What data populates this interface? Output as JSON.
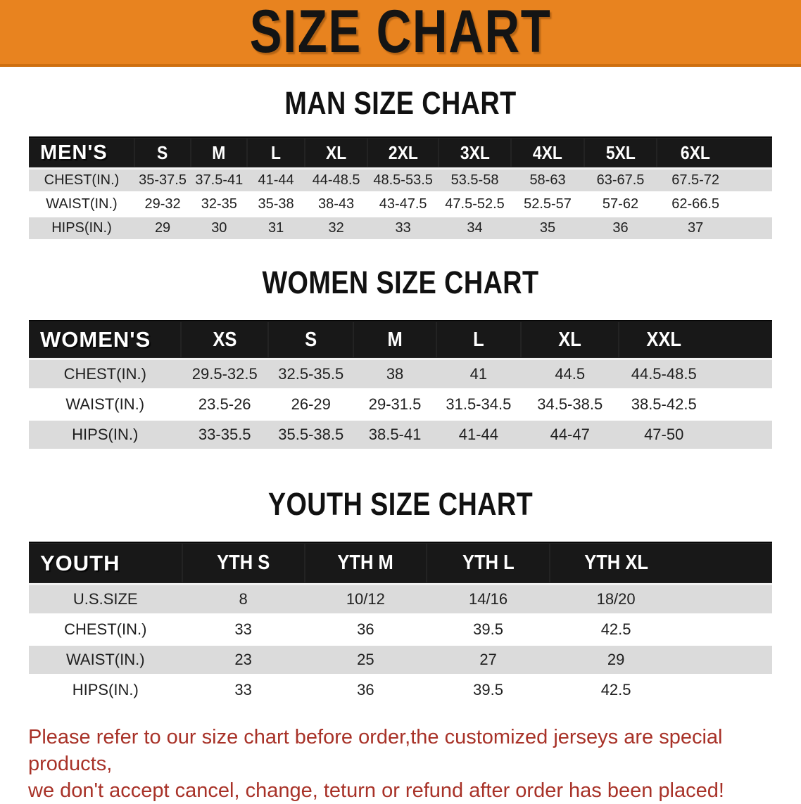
{
  "banner": {
    "title": "SIZE CHART"
  },
  "colors": {
    "accent_orange": "#E8831F",
    "header_black": "#181818",
    "row_gray": "#DBDBDB",
    "footer_red": "#A83228"
  },
  "sections": [
    {
      "id": "men",
      "heading": "MAN SIZE CHART",
      "table": {
        "header": [
          "MEN'S",
          "S",
          "M",
          "L",
          "XL",
          "2XL",
          "3XL",
          "4XL",
          "5XL",
          "6XL"
        ],
        "rows": [
          {
            "label": "CHEST(IN.)",
            "values": [
              "35-37.5",
              "37.5-41",
              "41-44",
              "44-48.5",
              "48.5-53.5",
              "53.5-58",
              "58-63",
              "63-67.5",
              "67.5-72"
            ]
          },
          {
            "label": "WAIST(IN.)",
            "values": [
              "29-32",
              "32-35",
              "35-38",
              "38-43",
              "43-47.5",
              "47.5-52.5",
              "52.5-57",
              "57-62",
              "62-66.5"
            ]
          },
          {
            "label": "HIPS(IN.)",
            "values": [
              "29",
              "30",
              "31",
              "32",
              "33",
              "34",
              "35",
              "36",
              "37"
            ]
          }
        ]
      }
    },
    {
      "id": "women",
      "heading": "WOMEN SIZE CHART",
      "table": {
        "header": [
          "WOMEN'S",
          "XS",
          "S",
          "M",
          "L",
          "XL",
          "XXL"
        ],
        "rows": [
          {
            "label": "CHEST(IN.)",
            "values": [
              "29.5-32.5",
              "32.5-35.5",
              "38",
              "41",
              "44.5",
              "44.5-48.5"
            ]
          },
          {
            "label": "WAIST(IN.)",
            "values": [
              "23.5-26",
              "26-29",
              "29-31.5",
              "31.5-34.5",
              "34.5-38.5",
              "38.5-42.5"
            ]
          },
          {
            "label": "HIPS(IN.)",
            "values": [
              "33-35.5",
              "35.5-38.5",
              "38.5-41",
              "41-44",
              "44-47",
              "47-50"
            ]
          }
        ]
      }
    },
    {
      "id": "youth",
      "heading": "YOUTH SIZE CHART",
      "table": {
        "header": [
          "YOUTH",
          "YTH S",
          "YTH M",
          "YTH L",
          "YTH XL"
        ],
        "rows": [
          {
            "label": "U.S.SIZE",
            "values": [
              "8",
              "10/12",
              "14/16",
              "18/20"
            ]
          },
          {
            "label": "CHEST(IN.)",
            "values": [
              "33",
              "36",
              "39.5",
              "42.5"
            ]
          },
          {
            "label": "WAIST(IN.)",
            "values": [
              "23",
              "25",
              "27",
              "29"
            ]
          },
          {
            "label": "HIPS(IN.)",
            "values": [
              "33",
              "36",
              "39.5",
              "42.5"
            ]
          }
        ]
      }
    }
  ],
  "footer": {
    "line1": "Please refer to our size chart before order,the customized jerseys are special products,",
    "line2": "we don't accept cancel, change, teturn or refund after order has been placed!"
  }
}
